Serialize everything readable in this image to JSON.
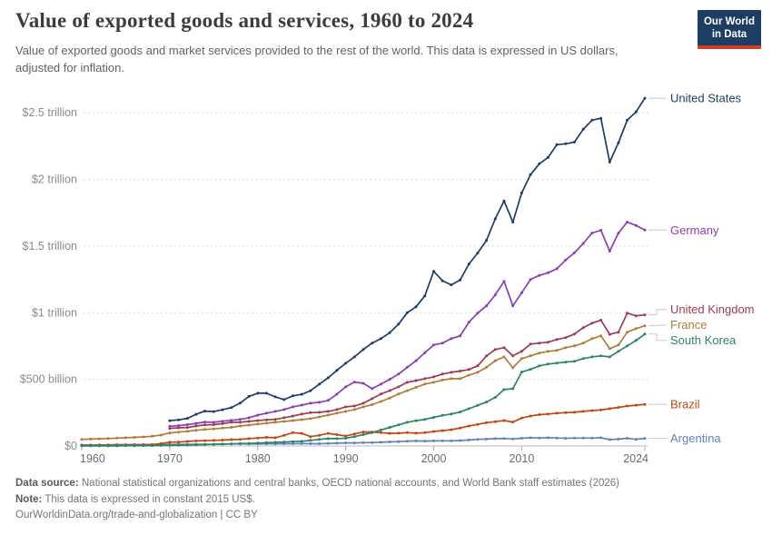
{
  "header": {
    "title": "Value of exported goods and services, 1960 to 2024",
    "subtitle": "Value of exported goods and market services provided to the rest of the world. This data is expressed in US dollars, adjusted for inflation."
  },
  "logo": {
    "line1": "Our World",
    "line2": "in Data",
    "bg_color": "#1d3d63",
    "stripe_color": "#cd3d2a"
  },
  "footer": {
    "source_label": "Data source:",
    "source_text": " National statistical organizations and central banks, OECD national accounts, and World Bank staff estimates (2026)",
    "note_label": "Note:",
    "note_text": " This data is expressed in constant 2015 US$.",
    "url_line": "OurWorldinData.org/trade-and-globalization | CC BY"
  },
  "chart_data": {
    "type": "line",
    "title": "Value of exported goods and services, 1960 to 2024",
    "xlabel": "",
    "ylabel": "",
    "unit": "US$ (constant 2015), billions",
    "x_range": [
      1960,
      2024
    ],
    "ylim": [
      0,
      2700
    ],
    "grid": true,
    "legend_position": "right",
    "yticks": [
      {
        "value": 0,
        "label": "$0"
      },
      {
        "value": 500,
        "label": "$500 billion"
      },
      {
        "value": 1000,
        "label": "$1 trillion"
      },
      {
        "value": 1500,
        "label": "$1.5 trillion"
      },
      {
        "value": 2000,
        "label": "$2 trillion"
      },
      {
        "value": 2500,
        "label": "$2.5 trillion"
      }
    ],
    "xticks": [
      1960,
      1970,
      1980,
      1990,
      2000,
      2010,
      2024
    ],
    "series": [
      {
        "name": "United States",
        "color": "#1d3d63",
        "start_year": 1970,
        "values": [
          190,
          196,
          207,
          238,
          262,
          258,
          272,
          288,
          322,
          372,
          396,
          396,
          369,
          348,
          376,
          388,
          415,
          464,
          512,
          567,
          621,
          669,
          724,
          772,
          806,
          850,
          915,
          1000,
          1045,
          1127,
          1311,
          1240,
          1209,
          1245,
          1366,
          1448,
          1543,
          1705,
          1838,
          1680,
          1899,
          2036,
          2118,
          2165,
          2261,
          2268,
          2281,
          2377,
          2445,
          2459,
          2131,
          2275,
          2445,
          2507,
          2610
        ]
      },
      {
        "name": "Germany",
        "color": "#8a3fb0",
        "start_year": 1970,
        "values": [
          148,
          153,
          160,
          170,
          180,
          178,
          186,
          192,
          200,
          212,
          232,
          246,
          260,
          273,
          294,
          307,
          321,
          328,
          342,
          389,
          444,
          480,
          470,
          430,
          464,
          500,
          540,
          590,
          640,
          700,
          758,
          772,
          806,
          826,
          929,
          997,
          1052,
          1134,
          1236,
          1052,
          1150,
          1250,
          1280,
          1300,
          1330,
          1395,
          1450,
          1520,
          1598,
          1619,
          1462,
          1598,
          1680,
          1655,
          1620
        ]
      },
      {
        "name": "United Kingdom",
        "color": "#a03a52",
        "start_year": 1970,
        "values": [
          132,
          136,
          139,
          150,
          158,
          160,
          168,
          178,
          178,
          185,
          191,
          196,
          200,
          212,
          225,
          239,
          250,
          253,
          260,
          273,
          294,
          300,
          321,
          355,
          390,
          416,
          444,
          478,
          491,
          505,
          519,
          540,
          553,
          562,
          574,
          601,
          676,
          724,
          738,
          676,
          710,
          765,
          772,
          779,
          799,
          813,
          840,
          888,
          922,
          945,
          838,
          854,
          997,
          977,
          984
        ]
      },
      {
        "name": "France",
        "color": "#b07c38",
        "start_year": 1960,
        "values": [
          50,
          52,
          54,
          56,
          59,
          62,
          65,
          68,
          73,
          82,
          98,
          104,
          110,
          118,
          124,
          128,
          134,
          140,
          150,
          157,
          164,
          171,
          178,
          184,
          191,
          198,
          205,
          218,
          232,
          246,
          260,
          273,
          294,
          310,
          334,
          360,
          390,
          415,
          440,
          465,
          478,
          495,
          505,
          505,
          532,
          553,
          590,
          640,
          669,
          587,
          656,
          676,
          697,
          710,
          717,
          738,
          751,
          772,
          806,
          826,
          731,
          758,
          854,
          881,
          902
        ]
      },
      {
        "name": "South Korea",
        "color": "#2c8465",
        "start_year": 1960,
        "values": [
          1,
          1,
          1,
          1,
          1,
          2,
          2,
          3,
          3,
          4,
          5,
          6,
          7,
          9,
          10,
          12,
          14,
          16,
          18,
          19,
          22,
          25,
          27,
          30,
          33,
          35,
          42,
          50,
          55,
          55,
          58,
          70,
          85,
          100,
          120,
          140,
          158,
          178,
          190,
          200,
          215,
          230,
          240,
          255,
          280,
          305,
          330,
          365,
          423,
          430,
          555,
          575,
          601,
          615,
          622,
          630,
          635,
          656,
          669,
          676,
          669,
          710,
          751,
          792,
          840
        ]
      },
      {
        "name": "Brazil",
        "color": "#c04713",
        "start_year": 1960,
        "values": [
          5,
          5,
          5,
          5,
          6,
          7,
          7,
          8,
          10,
          18,
          29,
          30,
          34,
          38,
          40,
          42,
          44,
          48,
          50,
          55,
          60,
          65,
          62,
          80,
          100,
          95,
          70,
          80,
          95,
          85,
          75,
          90,
          105,
          105,
          100,
          95,
          96,
          100,
          96,
          100,
          109,
          115,
          123,
          135,
          150,
          162,
          175,
          183,
          191,
          180,
          210,
          225,
          235,
          240,
          246,
          250,
          253,
          260,
          266,
          270,
          280,
          290,
          300,
          306,
          312
        ]
      },
      {
        "name": "Argentina",
        "color": "#6083bb",
        "start_year": 1960,
        "values": [
          8,
          8,
          9,
          9,
          10,
          10,
          11,
          11,
          11,
          12,
          12,
          12,
          12,
          13,
          13,
          12,
          14,
          16,
          16,
          16,
          15,
          16,
          16,
          17,
          17,
          18,
          17,
          17,
          19,
          21,
          23,
          23,
          25,
          26,
          28,
          31,
          33,
          36,
          38,
          37,
          38,
          39,
          39,
          41,
          45,
          50,
          52,
          55,
          56,
          53,
          58,
          62,
          60,
          62,
          60,
          58,
          59,
          59,
          59,
          62,
          48,
          52,
          58,
          50,
          57
        ]
      }
    ]
  }
}
